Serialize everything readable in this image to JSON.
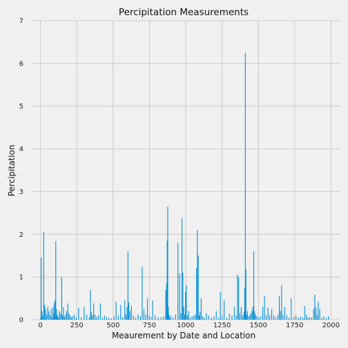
{
  "chart_data": {
    "type": "bar",
    "title": "Percipitation Measurements",
    "xlabel": "Meaurement by Date and Location",
    "ylabel": "Percipitation",
    "xlim": [
      -60,
      2060
    ],
    "ylim": [
      0,
      7
    ],
    "xticks": [
      0,
      250,
      500,
      750,
      1000,
      1250,
      1500,
      1750,
      2000
    ],
    "yticks": [
      0,
      1,
      2,
      3,
      4,
      5,
      6,
      7
    ],
    "grid": true,
    "bar_color": "#008fd5",
    "background": "#f0f0f0",
    "series": [
      {
        "x": [
          2,
          5,
          10,
          15,
          22,
          28,
          35,
          42,
          50,
          58,
          66,
          74,
          80,
          86,
          90,
          96,
          100,
          105,
          110,
          114,
          118,
          124,
          130,
          138,
          146,
          152,
          158,
          165,
          172,
          180,
          188,
          196,
          204,
          212,
          220,
          232,
          246,
          262,
          280,
          300,
          318,
          336,
          344,
          350,
          358,
          366,
          376,
          386,
          398,
          412,
          426,
          440,
          456,
          470,
          488,
          506,
          520,
          536,
          552,
          566,
          580,
          588,
          596,
          602,
          608,
          616,
          626,
          640,
          656,
          672,
          688,
          700,
          712,
          724,
          736,
          748,
          760,
          772,
          790,
          810,
          830,
          848,
          862,
          868,
          872,
          876,
          880,
          884,
          888,
          896,
          912,
          930,
          946,
          958,
          966,
          974,
          980,
          986,
          992,
          998,
          1004,
          1012,
          1020,
          1032,
          1044,
          1056,
          1066,
          1074,
          1080,
          1086,
          1092,
          1098,
          1106,
          1116,
          1128,
          1142,
          1158,
          1176,
          1194,
          1210,
          1226,
          1238,
          1250,
          1264,
          1282,
          1300,
          1318,
          1334,
          1346,
          1356,
          1364,
          1372,
          1382,
          1392,
          1400,
          1406,
          1410,
          1414,
          1418,
          1424,
          1432,
          1440,
          1448,
          1456,
          1462,
          1468,
          1474,
          1480,
          1490,
          1502,
          1516,
          1530,
          1542,
          1554,
          1566,
          1578,
          1592,
          1606,
          1620,
          1634,
          1644,
          1652,
          1660,
          1670,
          1682,
          1696,
          1710,
          1726,
          1742,
          1758,
          1774,
          1790,
          1806,
          1818,
          1830,
          1840,
          1852,
          1866,
          1880,
          1888,
          1896,
          1904,
          1912,
          1922,
          1936,
          1950,
          1966,
          1982
        ],
        "values": [
          0.05,
          1.45,
          0.2,
          0.1,
          2.06,
          0.35,
          0.25,
          0.12,
          0.3,
          0.2,
          0.1,
          0.25,
          0.05,
          0.3,
          0.15,
          0.4,
          0.45,
          1.84,
          0.25,
          0.12,
          0.08,
          0.05,
          0.2,
          0.15,
          1.0,
          0.1,
          0.3,
          0.06,
          0.12,
          0.2,
          0.38,
          0.15,
          0.1,
          0.05,
          0.08,
          0.12,
          0.05,
          0.28,
          0.06,
          0.3,
          0.12,
          0.06,
          0.7,
          0.18,
          0.1,
          0.38,
          0.12,
          0.06,
          0.1,
          0.38,
          0.05,
          0.1,
          0.06,
          0.04,
          0.03,
          0.08,
          0.42,
          0.1,
          0.35,
          0.06,
          0.45,
          0.12,
          0.3,
          1.6,
          0.4,
          0.2,
          0.32,
          0.1,
          0.05,
          0.12,
          0.08,
          1.24,
          0.25,
          0.12,
          0.5,
          0.1,
          0.06,
          0.45,
          0.1,
          0.05,
          0.06,
          0.08,
          0.7,
          0.85,
          1.85,
          2.65,
          0.3,
          0.12,
          0.05,
          0.1,
          0.05,
          0.12,
          1.8,
          1.08,
          0.15,
          2.38,
          1.1,
          0.3,
          0.12,
          0.65,
          0.8,
          0.1,
          0.2,
          0.05,
          0.08,
          0.1,
          0.12,
          1.2,
          2.1,
          1.5,
          0.1,
          0.18,
          0.5,
          0.08,
          0.05,
          0.15,
          0.1,
          0.05,
          0.08,
          0.2,
          0.05,
          0.65,
          0.1,
          0.45,
          0.05,
          0.15,
          0.1,
          0.3,
          0.1,
          1.05,
          1.0,
          0.15,
          0.3,
          0.1,
          0.18,
          0.75,
          6.25,
          1.18,
          0.12,
          0.2,
          0.08,
          0.1,
          0.15,
          0.2,
          0.3,
          1.6,
          0.2,
          0.12,
          0.08,
          0.05,
          0.08,
          0.3,
          0.55,
          0.1,
          0.28,
          0.12,
          0.25,
          0.1,
          0.05,
          0.12,
          0.55,
          0.2,
          0.8,
          0.12,
          0.3,
          0.1,
          0.05,
          0.5,
          0.06,
          0.1,
          0.05,
          0.08,
          0.05,
          0.32,
          0.12,
          0.05,
          0.06,
          0.05,
          0.25,
          0.58,
          0.3,
          0.1,
          0.42,
          0.25,
          0.05,
          0.08,
          0.04,
          0.08
        ]
      }
    ]
  }
}
